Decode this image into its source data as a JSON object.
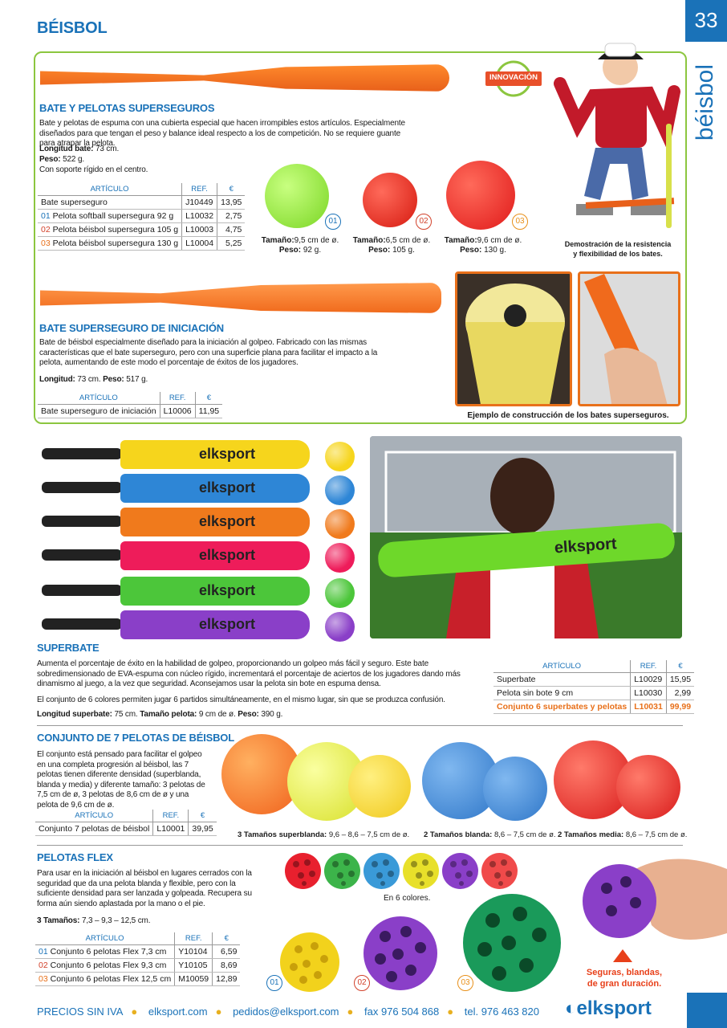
{
  "page": {
    "number": "33",
    "section_title": "BÉISBOL",
    "side_title": "béisbol"
  },
  "badge": "INNOVACIÓN",
  "p1": {
    "title": "BATE Y PELOTAS SUPERSEGUROS",
    "desc": "Bate y pelotas de espuma con una cubierta especial que hacen irrompibles estos artículos. Especialmente diseñados para que tengan el peso y balance ideal respecto a los de competición. No se requiere guante para atrapar la pelota.",
    "spec1_label": "Longitud bate:",
    "spec1_val": " 73 cm.",
    "spec2_label": "Peso:",
    "spec2_val": " 522 g.",
    "spec3": "Con soporte rígido en el centro.",
    "cols": [
      "ARTÍCULO",
      "REF.",
      "€"
    ],
    "rows": [
      {
        "n": "",
        "name": "Bate superseguro",
        "ref": "J10449",
        "price": "13,95"
      },
      {
        "n": "01",
        "name": " Pelota softball supersegura 92 g",
        "ref": "L10032",
        "price": "2,75"
      },
      {
        "n": "02",
        "name": " Pelota béisbol supersegura 105 g",
        "ref": "L10003",
        "price": "4,75"
      },
      {
        "n": "03",
        "name": " Pelota béisbol supersegura 130 g",
        "ref": "L10004",
        "price": "5,25"
      }
    ],
    "balls": [
      {
        "n": "01",
        "size": "9,5 cm de ø.",
        "weight": "92 g."
      },
      {
        "n": "02",
        "size": "6,5 cm de ø.",
        "weight": "105 g."
      },
      {
        "n": "03",
        "size": "9,6 cm de ø.",
        "weight": "130 g."
      }
    ],
    "size_label": "Tamaño:",
    "weight_label": "Peso:",
    "demo_caption": "Demostración de la resistencia y flexibilidad de los bates."
  },
  "p2": {
    "title": "BATE SUPERSEGURO DE INICIACIÓN",
    "desc": "Bate de béisbol especialmente diseñado para la iniciación al golpeo. Fabricado con las mismas características que el bate superseguro, pero con una superficie plana para facilitar el impacto a la pelota, aumentando de este modo el porcentaje de éxitos de los jugadores.",
    "spec_label1": "Longitud:",
    "spec_val1": " 73 cm. ",
    "spec_label2": "Peso:",
    "spec_val2": " 517 g.",
    "cols": [
      "ARTÍCULO",
      "REF.",
      "€"
    ],
    "row": {
      "name": "Bate superseguro de iniciación",
      "ref": "L10006",
      "price": "11,95"
    },
    "caption": "Ejemplo de construcción de los bates superseguros."
  },
  "p3": {
    "brand": "elksport",
    "title": "SUPERBATE",
    "desc1": "Aumenta el porcentaje de éxito en la habilidad de golpeo, proporcionando un golpeo más fácil y seguro. Este bate sobredimensionado de EVA-espuma con núcleo rígido, incrementará el porcentaje de aciertos de los jugadores dando más dinamismo al juego, a la vez que seguridad. Aconsejamos usar la pelota sin bote en espuma densa.",
    "desc2": "El conjunto de 6 colores permiten jugar 6 partidos simultáneamente, en el mismo lugar, sin que se produzca confusión.",
    "spec_l1": "Longitud superbate:",
    "spec_v1": " 75 cm. ",
    "spec_l2": "Tamaño pelota:",
    "spec_v2": " 9 cm de ø. ",
    "spec_l3": "Peso:",
    "spec_v3": " 390 g.",
    "cols": [
      "ARTÍCULO",
      "REF.",
      "€"
    ],
    "rows": [
      {
        "name": "Superbate",
        "ref": "L10029",
        "price": "15,95"
      },
      {
        "name": "Pelota sin bote 9 cm",
        "ref": "L10030",
        "price": "2,99"
      },
      {
        "name": "Conjunto 6 superbates y pelotas",
        "ref": "L10031",
        "price": "99,99"
      }
    ],
    "colors": [
      "#f6d51c",
      "#2e86d6",
      "#f07a1c",
      "#ee1c5a",
      "#4cc63a",
      "#8a3fc8"
    ]
  },
  "p4": {
    "title": "CONJUNTO DE 7 PELOTAS DE BÉISBOL",
    "desc": "El conjunto está pensado para facilitar el golpeo en una completa progresión al béisbol, las 7 pelotas tienen diferente densidad (superblanda, blanda y media) y diferente tamaño: 3 pelotas de 7,5 cm de ø, 3 pelotas de 8,6 cm de ø y una pelota de 9,6 cm de ø.",
    "cols": [
      "ARTÍCULO",
      "REF.",
      "€"
    ],
    "row": {
      "name": "Conjunto 7 pelotas de béisbol",
      "ref": "L10001",
      "price": "39,95"
    },
    "cap1_l": "3 Tamaños superblanda:",
    "cap1_v": " 9,6 – 8,6 – 7,5 cm de ø.",
    "cap2_l": "2 Tamaños blanda:",
    "cap2_v": " 8,6 – 7,5 cm de ø.",
    "cap3_l": "2 Tamaños media:",
    "cap3_v": " 8,6 – 7,5 cm de ø."
  },
  "p5": {
    "title": "PELOTAS FLEX",
    "desc": "Para usar en la iniciación al béisbol en lugares cerrados con la seguridad que da una pelota blanda y flexible, pero con la suficiente densidad para ser lanzada y golpeada. Recupera su forma aún siendo aplastada por la mano o el pie.",
    "spec_l": "3 Tamaños:",
    "spec_v": " 7,3 – 9,3 – 12,5 cm.",
    "cols": [
      "ARTÍCULO",
      "REF.",
      "€"
    ],
    "rows": [
      {
        "n": "01",
        "name": " Conjunto 6 pelotas Flex 7,3 cm",
        "ref": "Y10104",
        "price": "6,59"
      },
      {
        "n": "02",
        "name": " Conjunto 6 pelotas Flex 9,3 cm",
        "ref": "Y10105",
        "price": "8,69"
      },
      {
        "n": "03",
        "name": " Conjunto 6 pelotas Flex 12,5 cm",
        "ref": "M10059",
        "price": "12,89"
      }
    ],
    "colors_caption": "En 6 colores.",
    "flex_colors": [
      "#e8202e",
      "#3cb44a",
      "#3a9ad8",
      "#e8e02a",
      "#8a3fc8",
      "#f04a4a"
    ],
    "n1": "01",
    "n2": "02",
    "n3": "03",
    "tagline": "Seguras, blandas, de gran duración."
  },
  "footer": {
    "items": [
      "PRECIOS SIN IVA",
      "elksport.com",
      "pedidos@elksport.com",
      "fax 976 504 868",
      "tel. 976 463 820"
    ],
    "logo": "elksport"
  }
}
